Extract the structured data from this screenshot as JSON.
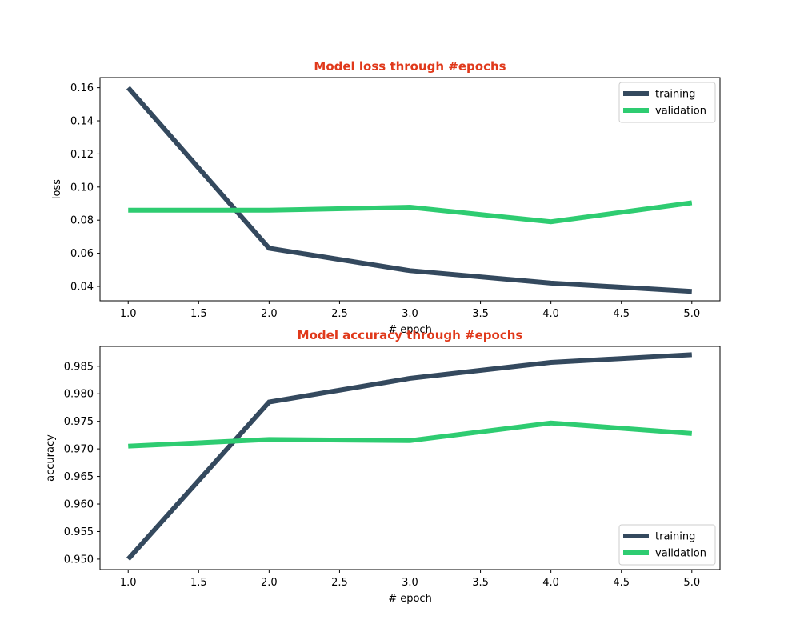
{
  "colors": {
    "title": "#e0391b",
    "training": "#34495e",
    "validation": "#2ecc71",
    "axis": "#000000",
    "legend_border": "#cccccc",
    "background": "#ffffff"
  },
  "chart_data": [
    {
      "type": "line",
      "title": "Model loss through #epochs",
      "xlabel": "# epoch",
      "ylabel": "loss",
      "xlim": [
        0.8,
        5.2
      ],
      "ylim": [
        0.0313,
        0.1661
      ],
      "xticks": [
        1.0,
        1.5,
        2.0,
        2.5,
        3.0,
        3.5,
        4.0,
        4.5,
        5.0
      ],
      "xtick_labels": [
        "1.0",
        "1.5",
        "2.0",
        "2.5",
        "3.0",
        "3.5",
        "4.0",
        "4.5",
        "5.0"
      ],
      "yticks": [
        0.04,
        0.06,
        0.08,
        0.1,
        0.12,
        0.14,
        0.16
      ],
      "ytick_labels": [
        "0.04",
        "0.06",
        "0.08",
        "0.10",
        "0.12",
        "0.14",
        "0.16"
      ],
      "legend_position": "upper right",
      "grid": false,
      "x": [
        1,
        2,
        3,
        4,
        5
      ],
      "series": [
        {
          "name": "training",
          "color_key": "training",
          "values": [
            0.16,
            0.063,
            0.0495,
            0.042,
            0.037
          ]
        },
        {
          "name": "validation",
          "color_key": "validation",
          "values": [
            0.086,
            0.086,
            0.0878,
            0.079,
            0.0905
          ]
        }
      ]
    },
    {
      "type": "line",
      "title": "Model accuracy through #epochs",
      "xlabel": "# epoch",
      "ylabel": "accuracy",
      "xlim": [
        0.8,
        5.2
      ],
      "ylim": [
        0.9481,
        0.9886
      ],
      "xticks": [
        1.0,
        1.5,
        2.0,
        2.5,
        3.0,
        3.5,
        4.0,
        4.5,
        5.0
      ],
      "xtick_labels": [
        "1.0",
        "1.5",
        "2.0",
        "2.5",
        "3.0",
        "3.5",
        "4.0",
        "4.5",
        "5.0"
      ],
      "yticks": [
        0.95,
        0.955,
        0.96,
        0.965,
        0.97,
        0.975,
        0.98,
        0.985
      ],
      "ytick_labels": [
        "0.950",
        "0.955",
        "0.960",
        "0.965",
        "0.970",
        "0.975",
        "0.980",
        "0.985"
      ],
      "legend_position": "lower right",
      "grid": false,
      "x": [
        1,
        2,
        3,
        4,
        5
      ],
      "series": [
        {
          "name": "training",
          "color_key": "training",
          "values": [
            0.95,
            0.9785,
            0.9828,
            0.9857,
            0.9871
          ]
        },
        {
          "name": "validation",
          "color_key": "validation",
          "values": [
            0.9705,
            0.9717,
            0.9715,
            0.9747,
            0.9728
          ]
        }
      ]
    }
  ]
}
